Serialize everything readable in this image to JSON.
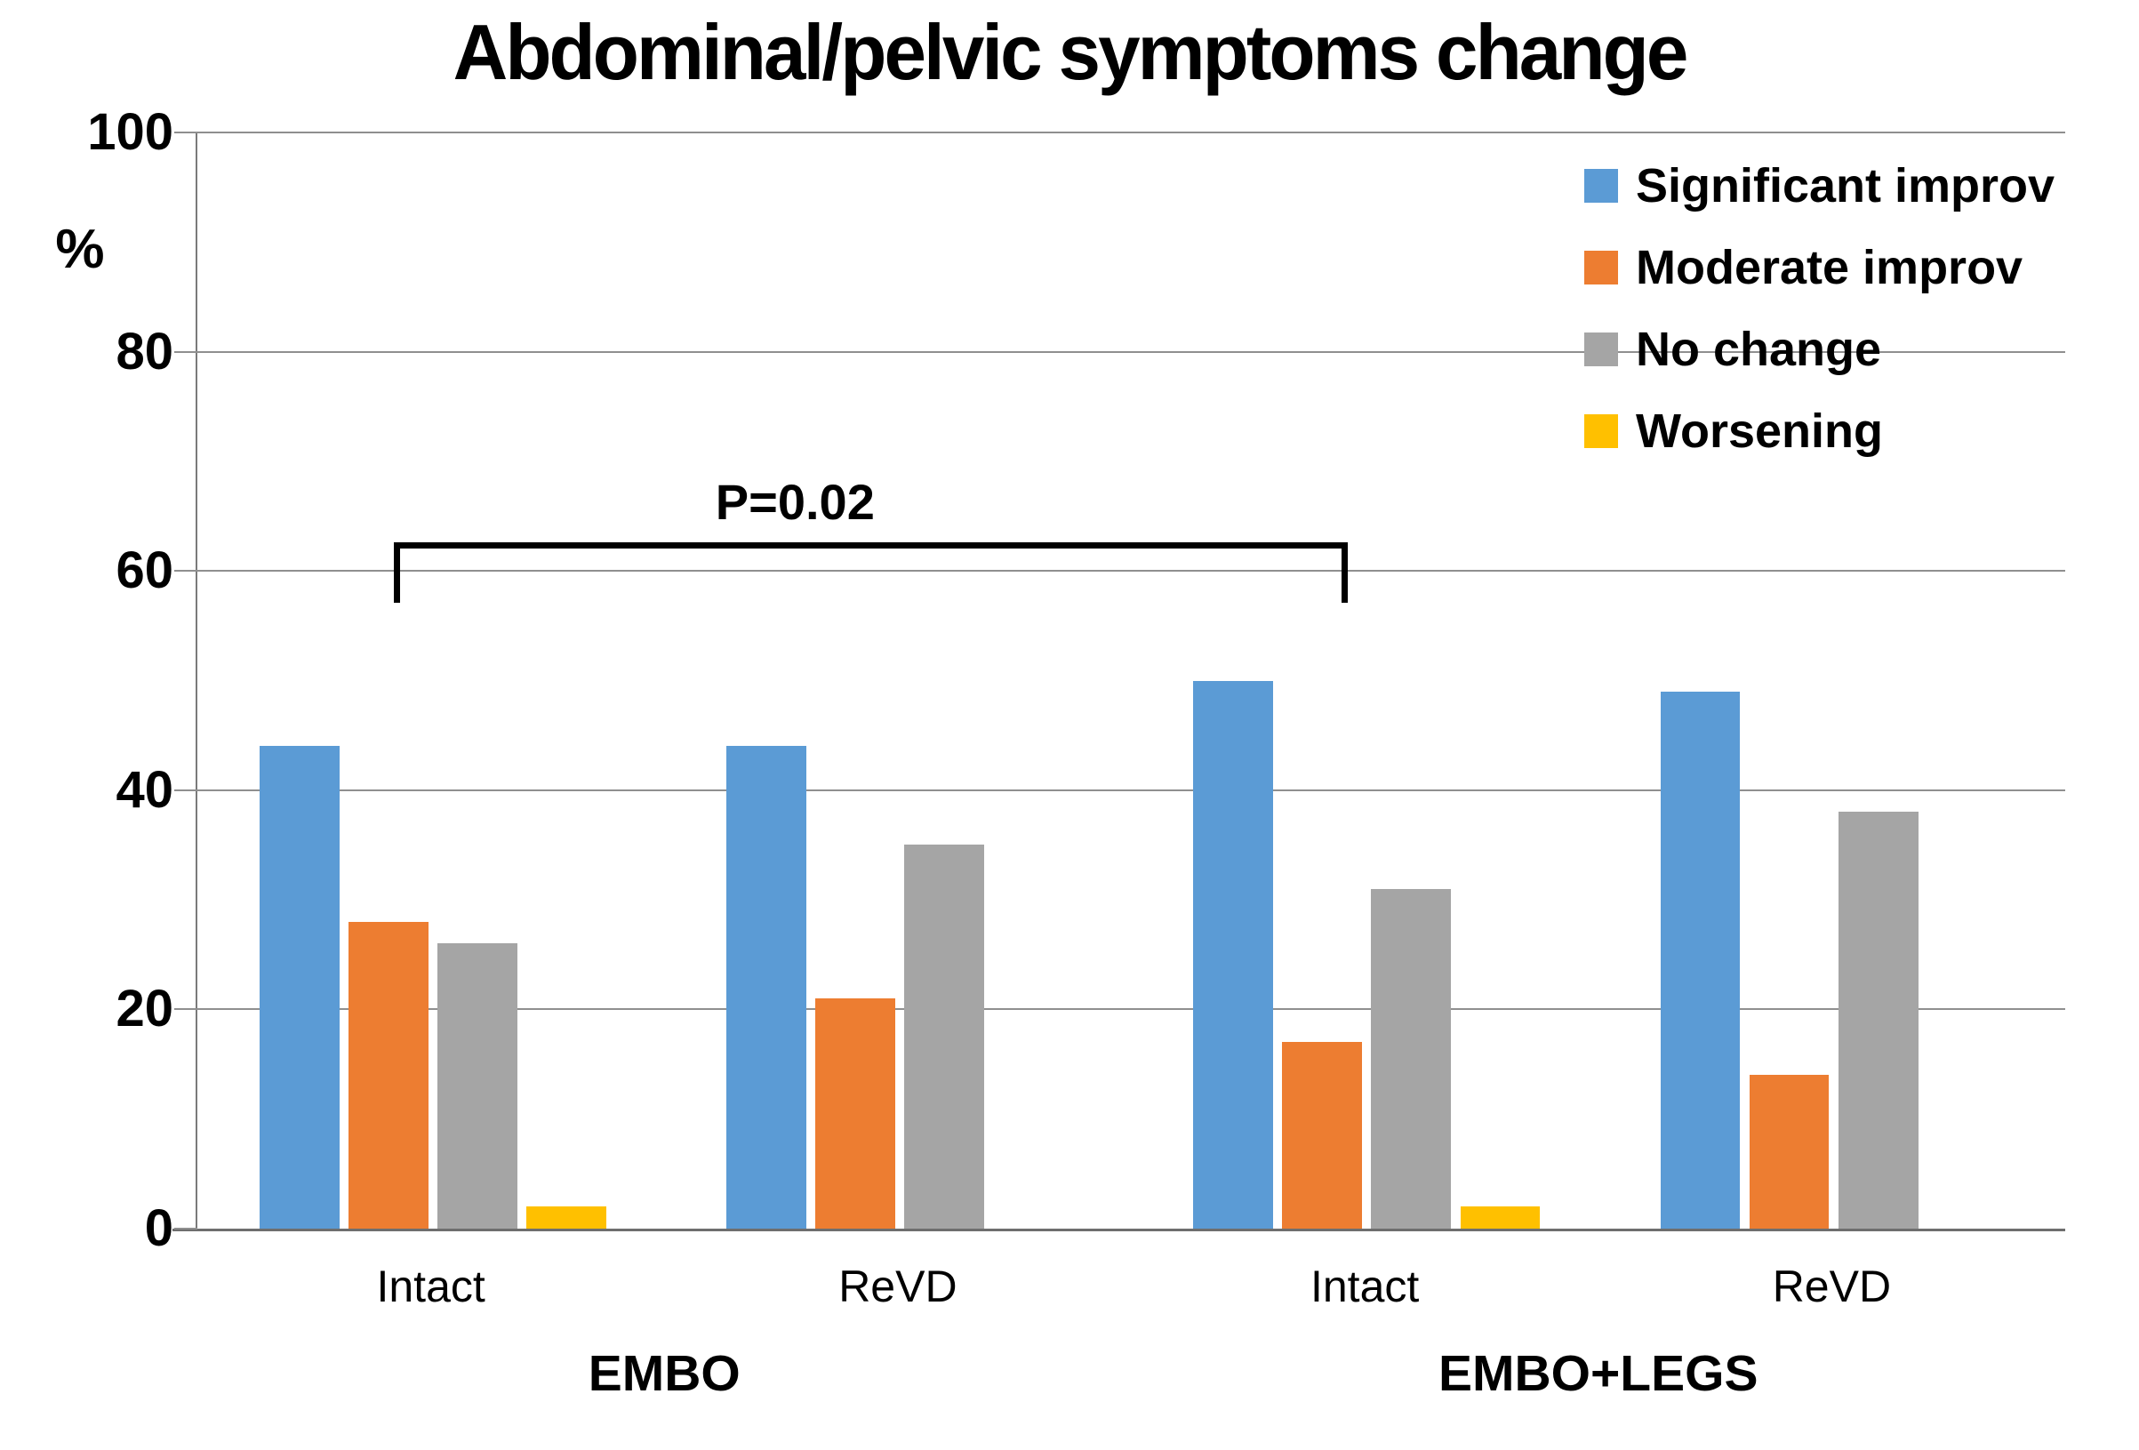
{
  "chart_title": "Abdominal/pelvic symptoms change",
  "chart_data": {
    "type": "bar",
    "title": "Abdominal/pelvic symptoms change",
    "xlabel": "",
    "ylabel": "%",
    "ylim": [
      0,
      100
    ],
    "yticks": [
      0,
      20,
      40,
      60,
      80,
      100
    ],
    "grid": true,
    "legend_position": "top-right-inside",
    "categories": [
      "Intact",
      "ReVD",
      "Intact",
      "ReVD"
    ],
    "category_groups": [
      {
        "label": "EMBO",
        "span_categories": [
          0,
          1
        ]
      },
      {
        "label": "EMBO+LEGS",
        "span_categories": [
          2,
          3
        ]
      }
    ],
    "series": [
      {
        "name": "Significant improv",
        "color": "#5B9BD5",
        "values": [
          44,
          44,
          50,
          49
        ]
      },
      {
        "name": "Moderate improv",
        "color": "#ED7D31",
        "values": [
          28,
          21,
          17,
          14
        ]
      },
      {
        "name": "No change",
        "color": "#A5A5A5",
        "values": [
          26,
          35,
          31,
          38
        ]
      },
      {
        "name": "Worsening",
        "color": "#FFC000",
        "values": [
          2,
          0,
          2,
          0
        ]
      }
    ],
    "annotation": {
      "text": "P=0.02",
      "compares": [
        "EMBO Intact",
        "EMBO+LEGS Intact"
      ],
      "y_value": 62.6,
      "tick_drop_units": 5.5
    },
    "axis_color": "#6e6e6e",
    "gridline_color": "#8f8f8f",
    "text_color": "#000000"
  }
}
